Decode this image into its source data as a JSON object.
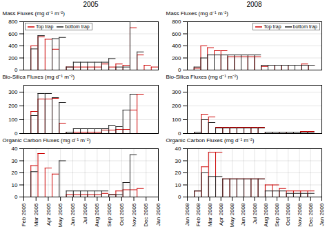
{
  "chart_data": [
    {
      "type": "step",
      "title": "2005",
      "ylabel": "Mass Fluxes (mg d⁻¹ m⁻²)",
      "xlim": [
        0,
        19
      ],
      "ylim": [
        0,
        800
      ],
      "yticks": [
        0,
        200,
        400,
        600,
        800
      ],
      "grid": true,
      "tick_labels": "y",
      "legend": "upper left",
      "series": [
        {
          "name": "Top trap",
          "color": "#cc0000",
          "values": [
            0,
            400,
            550,
            510,
            345,
            0,
            50,
            50,
            50,
            50,
            50,
            100,
            50,
            100,
            80,
            700,
            250,
            80,
            50
          ]
        },
        {
          "name": "bottom trap",
          "color": "#222222",
          "values": [
            0,
            350,
            570,
            0,
            520,
            540,
            50,
            130,
            130,
            130,
            130,
            130,
            190,
            50,
            50,
            800,
            300,
            0,
            0
          ]
        }
      ]
    },
    {
      "type": "step",
      "title": "2008",
      "ylabel": "Mass Fluxes (mg d⁻¹ m⁻²)",
      "xlim": [
        0,
        20
      ],
      "ylim": [
        0,
        800
      ],
      "yticks": [
        0,
        200,
        400,
        600,
        800
      ],
      "grid": true,
      "tick_labels": "y",
      "legend": "upper right",
      "series": [
        {
          "name": "Top trap",
          "color": "#cc0000",
          "values": [
            0,
            30,
            400,
            370,
            320,
            320,
            220,
            220,
            220,
            220,
            220,
            60,
            80,
            80,
            80,
            80,
            80,
            100,
            80,
            0
          ]
        },
        {
          "name": "bottom trap",
          "color": "#222222",
          "values": [
            0,
            50,
            200,
            250,
            250,
            250,
            250,
            250,
            250,
            250,
            250,
            80,
            80,
            80,
            80,
            80,
            80,
            80,
            80,
            0
          ]
        }
      ]
    },
    {
      "type": "step",
      "ylabel": "Bio-Silica Fluxes (mg d⁻¹ m⁻²)",
      "xlim": [
        0,
        19
      ],
      "ylim": [
        0,
        350
      ],
      "yticks": [
        0,
        100,
        200,
        300
      ],
      "grid": true,
      "tick_labels": "y",
      "series": [
        {
          "color": "#cc0000",
          "values": [
            0,
            160,
            250,
            250,
            255,
            75,
            10,
            10,
            10,
            10,
            10,
            25,
            25,
            30,
            30,
            170,
            285,
            0,
            0
          ]
        },
        {
          "color": "#222222",
          "values": [
            0,
            130,
            290,
            290,
            260,
            225,
            10,
            35,
            35,
            35,
            35,
            35,
            60,
            50,
            170,
            285,
            0,
            0,
            0
          ]
        }
      ]
    },
    {
      "type": "step",
      "ylabel": "Bio-Silica Fluxes (mg d⁻¹ m⁻²)",
      "xlim": [
        0,
        19
      ],
      "ylim": [
        0,
        350
      ],
      "yticks": [
        0,
        100,
        200,
        300
      ],
      "grid": true,
      "tick_labels": "y",
      "series": [
        {
          "color": "#cc0000",
          "values": [
            0,
            10,
            140,
            120,
            45,
            45,
            45,
            45,
            45,
            45,
            45,
            10,
            10,
            10,
            10,
            10,
            15,
            15,
            0
          ]
        },
        {
          "color": "#222222",
          "values": [
            0,
            10,
            100,
            80,
            40,
            40,
            40,
            40,
            40,
            40,
            40,
            10,
            10,
            10,
            10,
            10,
            10,
            10,
            0
          ]
        }
      ]
    },
    {
      "type": "step",
      "ylabel": "Organic Carbon Fluxes (mg d⁻¹ m⁻²)",
      "xlim": [
        0,
        19
      ],
      "ylim": [
        0,
        40
      ],
      "yticks": [
        0,
        10,
        20,
        30,
        40
      ],
      "xticks": [
        {
          "value": 0,
          "label": "Feb 2005"
        },
        {
          "value": 1.7272727272727273,
          "label": "Mar 2005"
        },
        {
          "value": 3.4545454545454546,
          "label": "Apr 2005"
        },
        {
          "value": 5.181818181818182,
          "label": "May 2005"
        },
        {
          "value": 6.909090909090909,
          "label": "Jun 2005"
        },
        {
          "value": 8.636363636363637,
          "label": "Jul 2005"
        },
        {
          "value": 10.363636363636363,
          "label": "Aug 2005"
        },
        {
          "value": 12.090909090909092,
          "label": "Sep 2005"
        },
        {
          "value": 13.818181818181818,
          "label": "Oct 2005"
        },
        {
          "value": 15.545454545454545,
          "label": "Nov 2005"
        },
        {
          "value": 17.272727272727273,
          "label": "Dec 2005"
        },
        {
          "value": 19,
          "label": "Jan 2006"
        }
      ],
      "grid": true,
      "series": [
        {
          "color": "#cc0000",
          "values": [
            0,
            26,
            36,
            24,
            19,
            0,
            2,
            2,
            2,
            2,
            2,
            3,
            2,
            5,
            6,
            6,
            7,
            0,
            0
          ]
        },
        {
          "color": "#222222",
          "values": [
            0,
            21,
            0,
            0,
            0,
            30,
            5,
            5,
            5,
            5,
            5,
            5,
            2,
            2,
            12,
            35,
            0,
            0,
            0
          ]
        }
      ]
    },
    {
      "type": "step",
      "ylabel": "Organic Carbon Fluxes (mg d⁻¹ m⁻²)",
      "xlim": [
        0,
        19
      ],
      "ylim": [
        0,
        40
      ],
      "yticks": [
        0,
        10,
        20,
        30,
        40
      ],
      "xticks": [
        {
          "value": 0,
          "label": "Jan 2008"
        },
        {
          "value": 1.5833333333333333,
          "label": "Feb 2008"
        },
        {
          "value": 3.1666666666666665,
          "label": "Mar 2008"
        },
        {
          "value": 4.75,
          "label": "Apr 2008"
        },
        {
          "value": 6.333333333333333,
          "label": "May 2008"
        },
        {
          "value": 7.916666666666667,
          "label": "Jun 2008"
        },
        {
          "value": 9.5,
          "label": "Jul 2008"
        },
        {
          "value": 11.083333333333334,
          "label": "Aug 2008"
        },
        {
          "value": 12.666666666666666,
          "label": "Sep 2008"
        },
        {
          "value": 14.25,
          "label": "Oct 2008"
        },
        {
          "value": 15.833333333333334,
          "label": "Nov 2008"
        },
        {
          "value": 17.416666666666668,
          "label": "Dec 2008"
        },
        {
          "value": 19,
          "label": "Jan 2009"
        }
      ],
      "grid": true,
      "series": [
        {
          "color": "#cc0000",
          "values": [
            0,
            5,
            25,
            37,
            37,
            15,
            15,
            15,
            15,
            15,
            15,
            10,
            10,
            7,
            5,
            5,
            5,
            5,
            0
          ]
        },
        {
          "color": "#222222",
          "values": [
            0,
            5,
            20,
            17,
            17,
            15,
            15,
            15,
            15,
            15,
            15,
            5,
            5,
            5,
            3,
            3,
            3,
            3,
            0
          ]
        }
      ]
    }
  ]
}
